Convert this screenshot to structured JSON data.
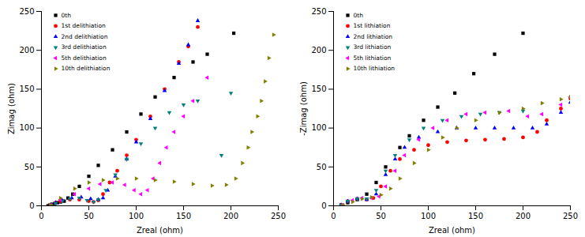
{
  "chart_data": [
    {
      "type": "scatter",
      "x_label": "Zreal (ohm)",
      "y_label": "Zimag (ohm)",
      "xlim": [
        0,
        250
      ],
      "ylim": [
        0,
        250
      ],
      "xticks": [
        0,
        50,
        100,
        150,
        200,
        250
      ],
      "yticks": [
        0,
        50,
        100,
        150,
        200,
        250
      ],
      "legend": "top-left",
      "series": [
        {
          "name": "0th",
          "color": "#000000",
          "marker": "square",
          "x": [
            7,
            9,
            11,
            14,
            17,
            20,
            24,
            28,
            33,
            40,
            50,
            60,
            75,
            90,
            105,
            120,
            140,
            160,
            175,
            203
          ],
          "values": [
            0,
            1,
            2,
            3,
            4,
            5,
            6,
            10,
            15,
            25,
            38,
            52,
            72,
            95,
            118,
            140,
            165,
            185,
            195,
            222
          ]
        },
        {
          "name": "1st delithiation",
          "color": "#ff0000",
          "marker": "circle",
          "x": [
            10,
            15,
            20,
            30,
            40,
            50,
            55,
            60,
            65,
            72,
            80,
            90,
            100,
            115,
            130,
            145,
            155,
            165
          ],
          "values": [
            1,
            4,
            6,
            8,
            8,
            6,
            5,
            7,
            15,
            30,
            45,
            65,
            85,
            115,
            150,
            185,
            205,
            230
          ]
        },
        {
          "name": "2nd delithiation",
          "color": "#0000ff",
          "marker": "triangle-up",
          "x": [
            10,
            15,
            22,
            32,
            42,
            52,
            60,
            65,
            70,
            78,
            90,
            100,
            115,
            130,
            145,
            155,
            165
          ],
          "values": [
            1,
            4,
            7,
            10,
            11,
            9,
            8,
            10,
            20,
            38,
            60,
            82,
            112,
            148,
            183,
            207,
            238
          ]
        },
        {
          "name": "3rd delithiation",
          "color": "#008080",
          "marker": "triangle-down",
          "x": [
            10,
            15,
            22,
            30,
            40,
            48,
            55,
            60,
            68,
            78,
            90,
            105,
            120,
            135,
            150,
            165,
            190,
            200
          ],
          "values": [
            1,
            3,
            6,
            9,
            10,
            7,
            5,
            8,
            20,
            40,
            60,
            80,
            100,
            120,
            130,
            135,
            65,
            145
          ]
        },
        {
          "name": "5th delithiation",
          "color": "#ff00ff",
          "marker": "triangle-left",
          "x": [
            10,
            20,
            35,
            50,
            62,
            75,
            88,
            98,
            105,
            112,
            118,
            125,
            132,
            140,
            150,
            160,
            175
          ],
          "values": [
            1,
            8,
            15,
            22,
            28,
            30,
            27,
            20,
            15,
            20,
            35,
            55,
            75,
            95,
            115,
            135,
            165
          ]
        },
        {
          "name": "10th delithiation",
          "color": "#808000",
          "marker": "triangle-right",
          "x": [
            10,
            20,
            35,
            50,
            65,
            80,
            100,
            120,
            140,
            160,
            180,
            195,
            205,
            212,
            218,
            222,
            228,
            232,
            236,
            240,
            245
          ],
          "values": [
            1,
            10,
            22,
            30,
            33,
            35,
            35,
            33,
            31,
            28,
            26,
            27,
            35,
            55,
            75,
            95,
            115,
            135,
            160,
            190,
            220
          ]
        }
      ]
    },
    {
      "type": "scatter",
      "x_label": "Zreal (ohm)",
      "y_label": "-Zimag (ohm)",
      "xlim": [
        0,
        250
      ],
      "ylim": [
        0,
        250
      ],
      "xticks": [
        0,
        50,
        100,
        150,
        200,
        250
      ],
      "yticks": [
        0,
        50,
        100,
        150,
        200,
        250
      ],
      "legend": "top-left",
      "series": [
        {
          "name": "0th",
          "color": "#000000",
          "marker": "square",
          "x": [
            8,
            15,
            25,
            35,
            45,
            55,
            70,
            80,
            95,
            110,
            128,
            148,
            170,
            200
          ],
          "values": [
            1,
            4,
            8,
            15,
            30,
            50,
            75,
            90,
            110,
            127,
            145,
            170,
            195,
            222
          ]
        },
        {
          "name": "1st lithiation",
          "color": "#ff0000",
          "marker": "circle",
          "x": [
            8,
            15,
            25,
            35,
            42,
            50,
            60,
            70,
            85,
            100,
            120,
            140,
            160,
            180,
            200,
            215,
            225,
            240,
            250
          ],
          "values": [
            1,
            6,
            9,
            8,
            10,
            25,
            45,
            60,
            72,
            78,
            82,
            84,
            85,
            86,
            88,
            95,
            110,
            125,
            138
          ]
        },
        {
          "name": "2nd lithiation",
          "color": "#0000ff",
          "marker": "triangle-up",
          "x": [
            8,
            15,
            25,
            35,
            45,
            55,
            65,
            75,
            90,
            110,
            130,
            150,
            170,
            190,
            210,
            225,
            240,
            250
          ],
          "values": [
            1,
            6,
            9,
            8,
            15,
            40,
            60,
            75,
            88,
            95,
            100,
            100,
            100,
            100,
            100,
            105,
            120,
            133
          ]
        },
        {
          "name": "3rd lithiation",
          "color": "#008080",
          "marker": "triangle-down",
          "x": [
            8,
            15,
            25,
            35,
            45,
            55,
            65,
            80,
            95,
            115,
            135,
            155,
            175,
            200
          ],
          "values": [
            1,
            6,
            9,
            9,
            20,
            45,
            65,
            85,
            100,
            110,
            115,
            118,
            120,
            122
          ]
        },
        {
          "name": "5th lithiation",
          "color": "#ff00ff",
          "marker": "triangle-left",
          "x": [
            10,
            20,
            30,
            40,
            48,
            55,
            65,
            75,
            90,
            105,
            120,
            140,
            160,
            185,
            205,
            220,
            240,
            250
          ],
          "values": [
            1,
            7,
            10,
            10,
            12,
            25,
            45,
            65,
            85,
            100,
            110,
            118,
            120,
            122,
            115,
            118,
            130,
            140
          ]
        },
        {
          "name": "10th lithiation",
          "color": "#808000",
          "marker": "triangle-right",
          "x": [
            10,
            20,
            30,
            40,
            50,
            60,
            70,
            85,
            100,
            115,
            130,
            150,
            175,
            200,
            220,
            240,
            250
          ],
          "values": [
            1,
            5,
            9,
            11,
            14,
            22,
            35,
            55,
            72,
            88,
            100,
            110,
            120,
            125,
            132,
            137,
            140
          ]
        }
      ]
    }
  ]
}
